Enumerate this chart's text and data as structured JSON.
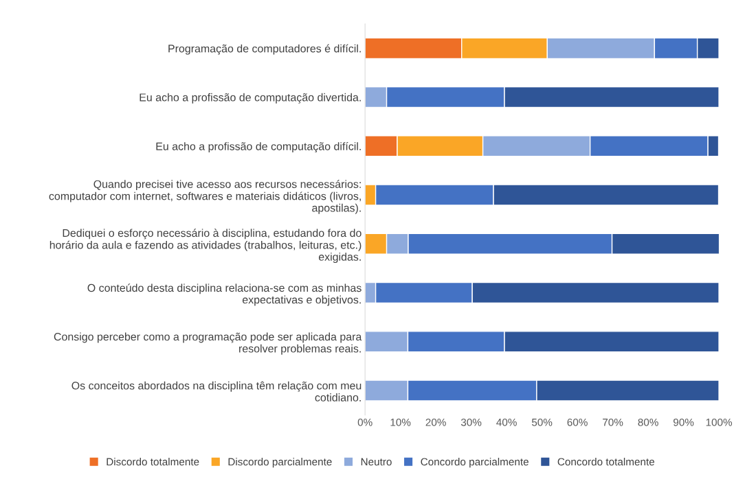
{
  "chart_data": {
    "type": "bar",
    "orientation": "horizontal",
    "stacked": true,
    "categories": [
      "Programação de computadores é difícil.",
      "Eu acho a profissão de computação divertida.",
      "Eu acho a profissão de computação difícil.",
      "Quando precisei tive acesso aos recursos necessários:\ncomputador com internet, softwares e materiais didáticos (livros,\napostilas).",
      "Dediquei o esforço necessário à disciplina, estudando fora do\nhorário da aula e fazendo as atividades (trabalhos, leituras, etc.)\nexigidas.",
      "O conteúdo desta disciplina relaciona-se com as minhas\nexpectativas e objetivos.",
      "Consigo perceber como a programação pode ser aplicada para\nresolver problemas reais.",
      "Os conceitos abordados na disciplina têm relação com meu\ncotidiano."
    ],
    "series": [
      {
        "name": "Discordo totalmente",
        "color": "#ee6f26",
        "values": [
          27.3,
          null,
          9.1,
          null,
          null,
          null,
          null,
          null
        ]
      },
      {
        "name": "Discordo parcialmente",
        "color": "#faa626",
        "values": [
          24.2,
          null,
          24.2,
          3.0,
          6.1,
          null,
          null,
          null
        ]
      },
      {
        "name": "Neutro",
        "color": "#8eaadc",
        "values": [
          30.3,
          6.1,
          30.3,
          null,
          6.1,
          3.0,
          12.1,
          12.1
        ]
      },
      {
        "name": "Concordo parcialmente",
        "color": "#4472c4",
        "values": [
          12.1,
          33.3,
          33.3,
          33.3,
          57.6,
          27.3,
          27.3,
          36.4
        ]
      },
      {
        "name": "Concordo totalmente",
        "color": "#2f5597",
        "values": [
          6.1,
          60.6,
          3.0,
          63.6,
          30.3,
          69.7,
          60.6,
          51.5
        ]
      }
    ],
    "xlim": [
      0,
      100
    ],
    "xticks": [
      {
        "value": 0,
        "label": "0%"
      },
      {
        "value": 10,
        "label": "10%"
      },
      {
        "value": 20,
        "label": "20%"
      },
      {
        "value": 30,
        "label": "30%"
      },
      {
        "value": 40,
        "label": "40%"
      },
      {
        "value": 50,
        "label": "50%"
      },
      {
        "value": 60,
        "label": "60%"
      },
      {
        "value": 70,
        "label": "70%"
      },
      {
        "value": 80,
        "label": "80%"
      },
      {
        "value": 90,
        "label": "90%"
      },
      {
        "value": 100,
        "label": "100%"
      }
    ],
    "grid": false,
    "legend": "bottom"
  }
}
